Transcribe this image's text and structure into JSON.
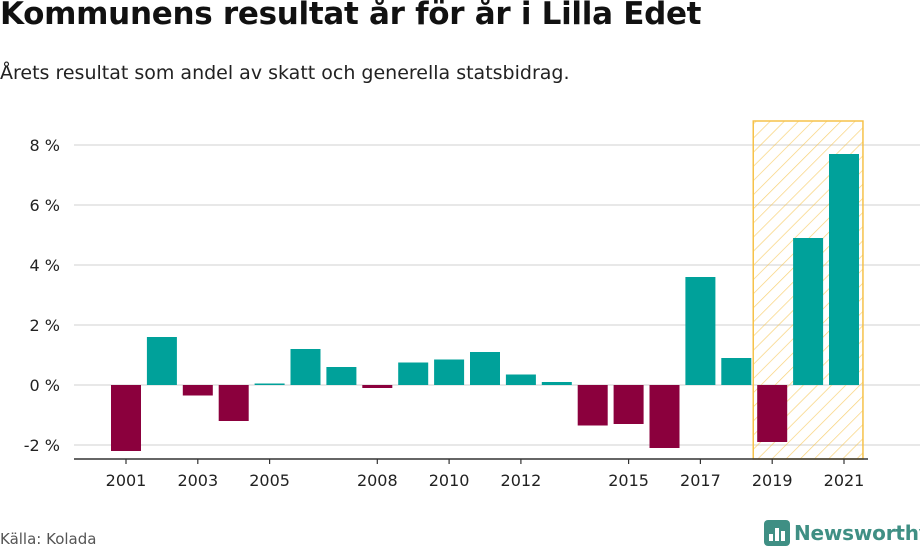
{
  "title": "Kommunens resultat år för år i Lilla Edet",
  "subtitle": "Årets resultat som andel av skatt och generella statsbidrag.",
  "source": "Källa: Kolada",
  "brand": "Newsworthy",
  "colors": {
    "positive": "#00a19a",
    "negative": "#8b003d",
    "highlight_stroke": "#f6c24a",
    "grid": "#d9d9d9",
    "brand": "#3f8f84"
  },
  "chart_data": {
    "type": "bar",
    "title": "Kommunens resultat år för år i Lilla Edet",
    "subtitle": "Årets resultat som andel av skatt och generella statsbidrag.",
    "x": [
      2001,
      2002,
      2003,
      2004,
      2005,
      2006,
      2007,
      2008,
      2009,
      2010,
      2011,
      2012,
      2013,
      2014,
      2015,
      2016,
      2017,
      2018,
      2019,
      2020,
      2021
    ],
    "values": [
      -2.2,
      1.6,
      -0.35,
      -1.2,
      0.05,
      1.2,
      0.6,
      -0.1,
      0.75,
      0.85,
      1.1,
      0.35,
      0.1,
      -1.35,
      -1.3,
      -2.1,
      3.6,
      0.9,
      -1.9,
      4.9,
      7.7
    ],
    "ylim": [
      -2.5,
      8.8
    ],
    "yticks": [
      -2,
      0,
      2,
      4,
      6,
      8
    ],
    "ytick_labels": [
      "-2 %",
      "0 %",
      "2 %",
      "4 %",
      "6 %",
      "8 %"
    ],
    "xtick_labels": [
      "2001",
      "2003",
      "2005",
      "2008",
      "2010",
      "2012",
      "2015",
      "2017",
      "2019",
      "2021"
    ],
    "highlight_range": [
      2019,
      2021
    ],
    "grid": true,
    "legend": "none"
  }
}
